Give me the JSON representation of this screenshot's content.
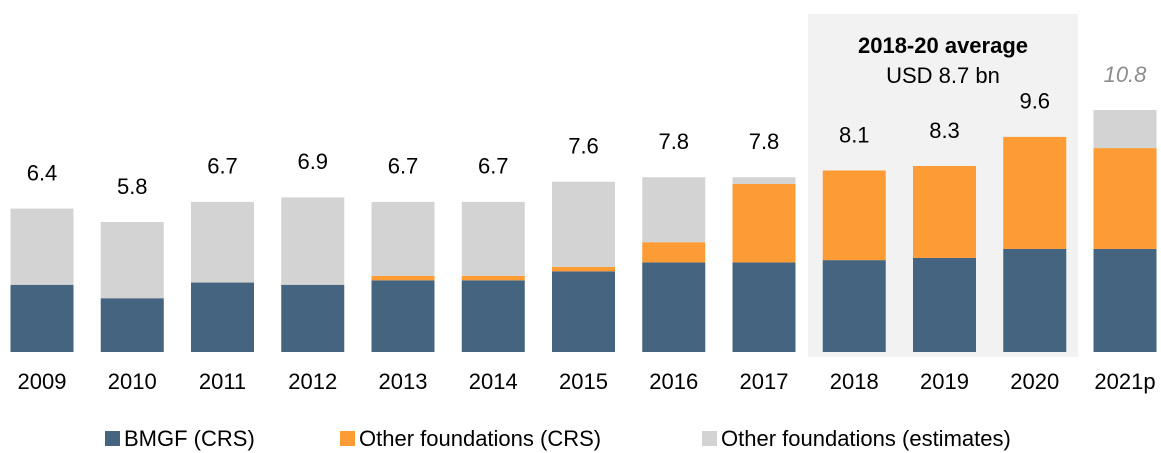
{
  "chart_data": {
    "type": "stacked_bar",
    "categories": [
      "2009",
      "2010",
      "2011",
      "2012",
      "2013",
      "2014",
      "2015",
      "2016",
      "2017",
      "2018",
      "2019",
      "2020",
      "2021p"
    ],
    "series": [
      {
        "name": "BMGF (CRS)",
        "color": "#44647f",
        "values": [
          3.0,
          2.4,
          3.1,
          3.0,
          3.2,
          3.2,
          3.6,
          4.0,
          4.0,
          4.1,
          4.2,
          4.6,
          4.6
        ]
      },
      {
        "name": "Other foundations (CRS)",
        "color": "#fd9b35",
        "values": [
          0,
          0,
          0,
          0,
          0.2,
          0.2,
          0.2,
          0.9,
          3.5,
          4.0,
          4.1,
          5.0,
          4.5
        ]
      },
      {
        "name": "Other foundations (estimates)",
        "color": "#d3d3d3",
        "values": [
          3.4,
          3.4,
          3.6,
          3.9,
          3.3,
          3.3,
          3.8,
          2.9,
          0.3,
          0,
          0,
          0,
          1.7
        ]
      }
    ],
    "totals": [
      6.4,
      5.8,
      6.7,
      6.9,
      6.7,
      6.7,
      7.6,
      7.8,
      7.8,
      8.1,
      8.3,
      9.6,
      10.8
    ],
    "annotations": [
      "2018-20 average",
      "USD 8.7 bn"
    ]
  }
}
